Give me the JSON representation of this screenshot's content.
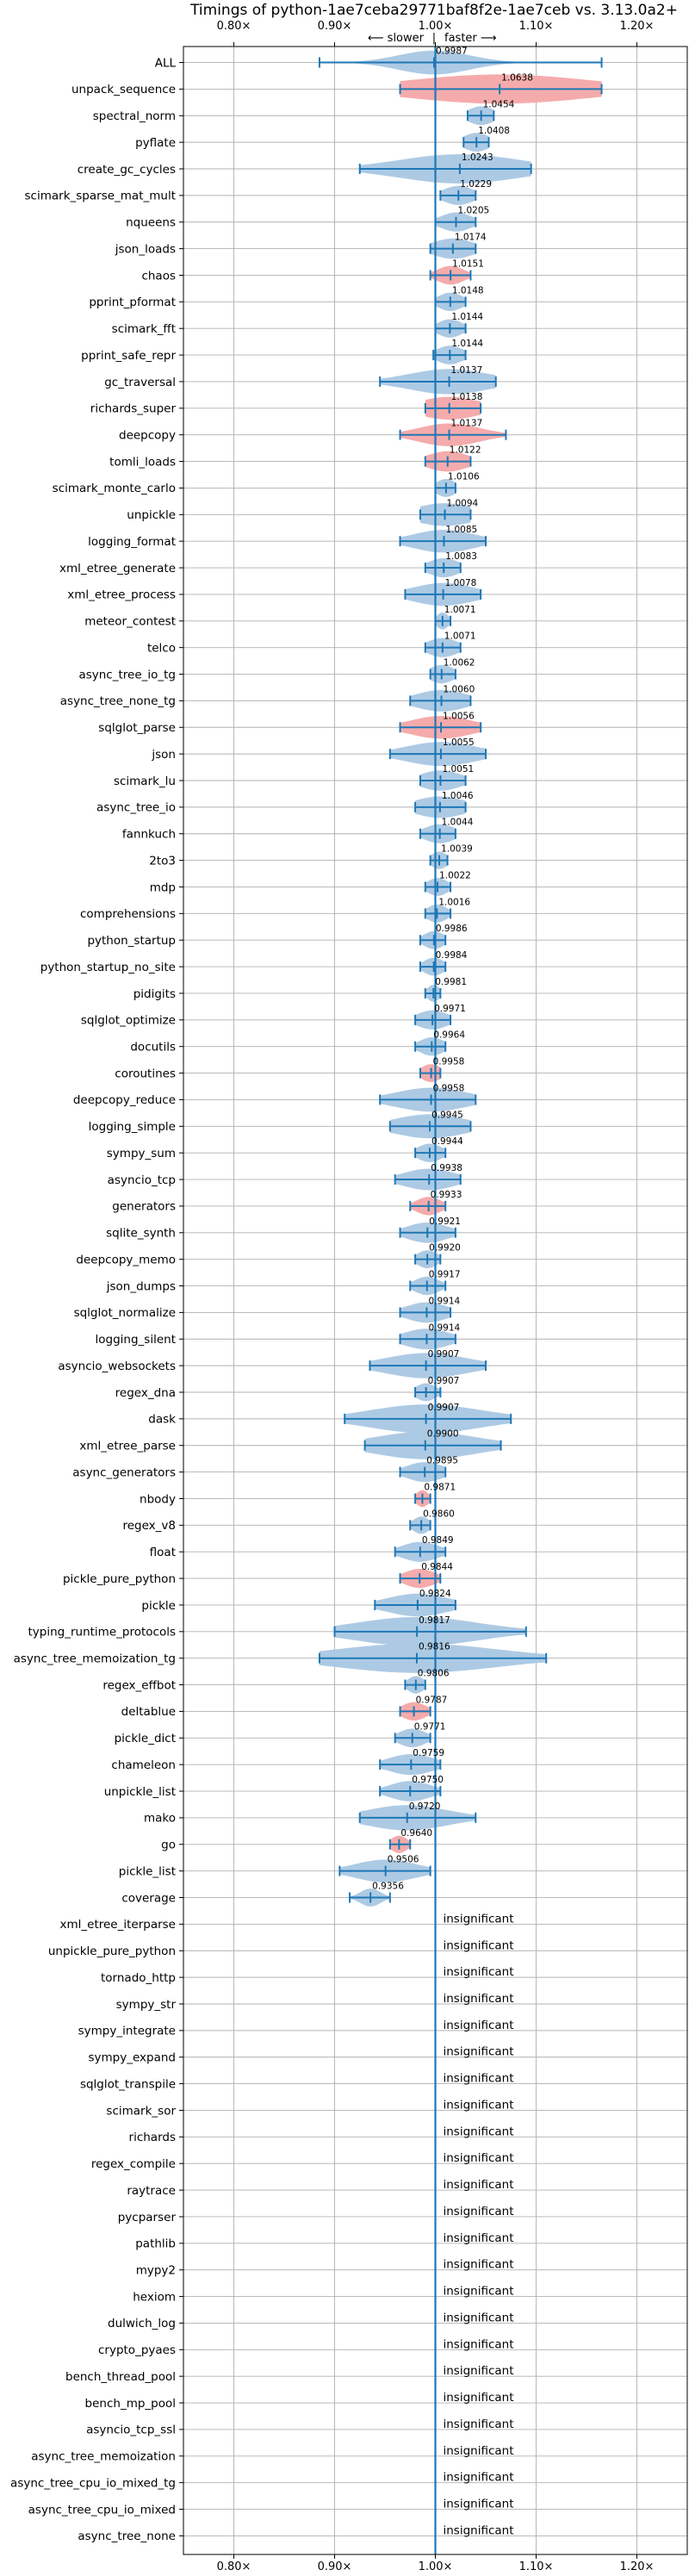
{
  "chart_data": {
    "type": "violin",
    "title": "Timings of python-1ae7ceba29771baf8f2e-1ae7ceb vs. 3.13.0a2+",
    "subtitle_left": "⟵ slower",
    "subtitle_right": "faster ⟶",
    "xlim": [
      0.75,
      1.25
    ],
    "x_ticks": [
      0.8,
      0.9,
      1.0,
      1.1,
      1.2
    ],
    "x_tick_labels": [
      "0.80×",
      "0.90×",
      "1.00×",
      "1.10×",
      "1.20×"
    ],
    "reference": 1.0,
    "colors": {
      "faster": "#a9c7e3",
      "slower": "#f4a7a7",
      "line": "#1f77b4"
    },
    "insignificant_label": "insignificant",
    "benchmarks": [
      {
        "name": "ALL",
        "value": 0.9987,
        "label": "0.9987",
        "lo": 0.885,
        "hi": 1.165,
        "spread": 0.035,
        "slower": false
      },
      {
        "name": "unpack_sequence",
        "value": 1.0638,
        "label": "1.0638",
        "lo": 0.965,
        "hi": 1.165,
        "spread": 0.09,
        "slower": true
      },
      {
        "name": "spectral_norm",
        "value": 1.0454,
        "label": "1.0454",
        "lo": 1.032,
        "hi": 1.058,
        "spread": 0.013,
        "slower": false
      },
      {
        "name": "pyflate",
        "value": 1.0408,
        "label": "1.0408",
        "lo": 1.028,
        "hi": 1.053,
        "spread": 0.013,
        "slower": false
      },
      {
        "name": "create_gc_cycles",
        "value": 1.0243,
        "label": "1.0243",
        "lo": 0.925,
        "hi": 1.095,
        "spread": 0.06,
        "slower": false
      },
      {
        "name": "scimark_sparse_mat_mult",
        "value": 1.0229,
        "label": "1.0229",
        "lo": 1.005,
        "hi": 1.04,
        "spread": 0.015,
        "slower": false
      },
      {
        "name": "nqueens",
        "value": 1.0205,
        "label": "1.0205",
        "lo": 1.0,
        "hi": 1.04,
        "spread": 0.015,
        "slower": false
      },
      {
        "name": "json_loads",
        "value": 1.0174,
        "label": "1.0174",
        "lo": 0.995,
        "hi": 1.04,
        "spread": 0.02,
        "slower": false
      },
      {
        "name": "chaos",
        "value": 1.0151,
        "label": "1.0151",
        "lo": 0.995,
        "hi": 1.035,
        "spread": 0.013,
        "slower": true
      },
      {
        "name": "pprint_pformat",
        "value": 1.0148,
        "label": "1.0148",
        "lo": 1.0,
        "hi": 1.03,
        "spread": 0.012,
        "slower": false
      },
      {
        "name": "scimark_fft",
        "value": 1.0144,
        "label": "1.0144",
        "lo": 1.0,
        "hi": 1.03,
        "spread": 0.012,
        "slower": false
      },
      {
        "name": "pprint_safe_repr",
        "value": 1.0144,
        "label": "1.0144",
        "lo": 0.998,
        "hi": 1.03,
        "spread": 0.013,
        "slower": false
      },
      {
        "name": "gc_traversal",
        "value": 1.0137,
        "label": "1.0137",
        "lo": 0.945,
        "hi": 1.06,
        "spread": 0.04,
        "slower": false
      },
      {
        "name": "richards_super",
        "value": 1.0138,
        "label": "1.0138",
        "lo": 0.99,
        "hi": 1.045,
        "spread": 0.03,
        "slower": true
      },
      {
        "name": "deepcopy",
        "value": 1.0137,
        "label": "1.0137",
        "lo": 0.965,
        "hi": 1.07,
        "spread": 0.03,
        "slower": true
      },
      {
        "name": "tomli_loads",
        "value": 1.0122,
        "label": "1.0122",
        "lo": 0.99,
        "hi": 1.035,
        "spread": 0.02,
        "slower": true
      },
      {
        "name": "scimark_monte_carlo",
        "value": 1.0106,
        "label": "1.0106",
        "lo": 1.0,
        "hi": 1.02,
        "spread": 0.01,
        "slower": false
      },
      {
        "name": "unpickle",
        "value": 1.0094,
        "label": "1.0094",
        "lo": 0.985,
        "hi": 1.035,
        "spread": 0.03,
        "slower": false
      },
      {
        "name": "logging_format",
        "value": 1.0085,
        "label": "1.0085",
        "lo": 0.965,
        "hi": 1.05,
        "spread": 0.03,
        "slower": false
      },
      {
        "name": "xml_etree_generate",
        "value": 1.0083,
        "label": "1.0083",
        "lo": 0.99,
        "hi": 1.025,
        "spread": 0.015,
        "slower": false
      },
      {
        "name": "xml_etree_process",
        "value": 1.0078,
        "label": "1.0078",
        "lo": 0.97,
        "hi": 1.045,
        "spread": 0.03,
        "slower": false
      },
      {
        "name": "meteor_contest",
        "value": 1.0071,
        "label": "1.0071",
        "lo": 1.0,
        "hi": 1.015,
        "spread": 0.006,
        "slower": false
      },
      {
        "name": "telco",
        "value": 1.0071,
        "label": "1.0071",
        "lo": 0.99,
        "hi": 1.025,
        "spread": 0.015,
        "slower": false
      },
      {
        "name": "async_tree_io_tg",
        "value": 1.0062,
        "label": "1.0062",
        "lo": 0.995,
        "hi": 1.02,
        "spread": 0.012,
        "slower": false
      },
      {
        "name": "async_tree_none_tg",
        "value": 1.006,
        "label": "1.0060",
        "lo": 0.975,
        "hi": 1.035,
        "spread": 0.025,
        "slower": false
      },
      {
        "name": "sqlglot_parse",
        "value": 1.0056,
        "label": "1.0056",
        "lo": 0.965,
        "hi": 1.045,
        "spread": 0.03,
        "slower": true
      },
      {
        "name": "json",
        "value": 1.0055,
        "label": "1.0055",
        "lo": 0.955,
        "hi": 1.05,
        "spread": 0.035,
        "slower": false
      },
      {
        "name": "scimark_lu",
        "value": 1.0051,
        "label": "1.0051",
        "lo": 0.985,
        "hi": 1.03,
        "spread": 0.02,
        "slower": false
      },
      {
        "name": "async_tree_io",
        "value": 1.0046,
        "label": "1.0046",
        "lo": 0.98,
        "hi": 1.03,
        "spread": 0.025,
        "slower": false
      },
      {
        "name": "fannkuch",
        "value": 1.0044,
        "label": "1.0044",
        "lo": 0.985,
        "hi": 1.02,
        "spread": 0.015,
        "slower": false
      },
      {
        "name": "2to3",
        "value": 1.0039,
        "label": "1.0039",
        "lo": 0.995,
        "hi": 1.012,
        "spread": 0.008,
        "slower": false
      },
      {
        "name": "mdp",
        "value": 1.0022,
        "label": "1.0022",
        "lo": 0.99,
        "hi": 1.015,
        "spread": 0.01,
        "slower": false
      },
      {
        "name": "comprehensions",
        "value": 1.0016,
        "label": "1.0016",
        "lo": 0.99,
        "hi": 1.015,
        "spread": 0.01,
        "slower": false
      },
      {
        "name": "python_startup",
        "value": 0.9986,
        "label": "0.9986",
        "lo": 0.985,
        "hi": 1.01,
        "spread": 0.01,
        "slower": false
      },
      {
        "name": "python_startup_no_site",
        "value": 0.9984,
        "label": "0.9984",
        "lo": 0.985,
        "hi": 1.01,
        "spread": 0.01,
        "slower": false
      },
      {
        "name": "pidigits",
        "value": 0.9981,
        "label": "0.9981",
        "lo": 0.99,
        "hi": 1.005,
        "spread": 0.006,
        "slower": false
      },
      {
        "name": "sqlglot_optimize",
        "value": 0.9971,
        "label": "0.9971",
        "lo": 0.98,
        "hi": 1.015,
        "spread": 0.015,
        "slower": false
      },
      {
        "name": "docutils",
        "value": 0.9964,
        "label": "0.9964",
        "lo": 0.98,
        "hi": 1.01,
        "spread": 0.012,
        "slower": false
      },
      {
        "name": "coroutines",
        "value": 0.9958,
        "label": "0.9958",
        "lo": 0.985,
        "hi": 1.005,
        "spread": 0.01,
        "slower": true
      },
      {
        "name": "deepcopy_reduce",
        "value": 0.9958,
        "label": "0.9958",
        "lo": 0.945,
        "hi": 1.04,
        "spread": 0.035,
        "slower": false
      },
      {
        "name": "logging_simple",
        "value": 0.9945,
        "label": "0.9945",
        "lo": 0.955,
        "hi": 1.035,
        "spread": 0.035,
        "slower": false
      },
      {
        "name": "sympy_sum",
        "value": 0.9944,
        "label": "0.9944",
        "lo": 0.98,
        "hi": 1.01,
        "spread": 0.012,
        "slower": false
      },
      {
        "name": "asyncio_tcp",
        "value": 0.9938,
        "label": "0.9938",
        "lo": 0.96,
        "hi": 1.025,
        "spread": 0.025,
        "slower": false
      },
      {
        "name": "generators",
        "value": 0.9933,
        "label": "0.9933",
        "lo": 0.975,
        "hi": 1.01,
        "spread": 0.012,
        "slower": true
      },
      {
        "name": "sqlite_synth",
        "value": 0.9921,
        "label": "0.9921",
        "lo": 0.965,
        "hi": 1.02,
        "spread": 0.02,
        "slower": false
      },
      {
        "name": "deepcopy_memo",
        "value": 0.992,
        "label": "0.9920",
        "lo": 0.98,
        "hi": 1.005,
        "spread": 0.01,
        "slower": false
      },
      {
        "name": "json_dumps",
        "value": 0.9917,
        "label": "0.9917",
        "lo": 0.975,
        "hi": 1.01,
        "spread": 0.012,
        "slower": false
      },
      {
        "name": "sqlglot_normalize",
        "value": 0.9914,
        "label": "0.9914",
        "lo": 0.965,
        "hi": 1.015,
        "spread": 0.02,
        "slower": false
      },
      {
        "name": "logging_silent",
        "value": 0.9914,
        "label": "0.9914",
        "lo": 0.965,
        "hi": 1.02,
        "spread": 0.022,
        "slower": false
      },
      {
        "name": "asyncio_websockets",
        "value": 0.9907,
        "label": "0.9907",
        "lo": 0.935,
        "hi": 1.05,
        "spread": 0.04,
        "slower": false
      },
      {
        "name": "regex_dna",
        "value": 0.9907,
        "label": "0.9907",
        "lo": 0.98,
        "hi": 1.005,
        "spread": 0.01,
        "slower": false
      },
      {
        "name": "dask",
        "value": 0.9907,
        "label": "0.9907",
        "lo": 0.91,
        "hi": 1.075,
        "spread": 0.055,
        "slower": false
      },
      {
        "name": "xml_etree_parse",
        "value": 0.99,
        "label": "0.9900",
        "lo": 0.93,
        "hi": 1.065,
        "spread": 0.05,
        "slower": false
      },
      {
        "name": "async_generators",
        "value": 0.9895,
        "label": "0.9895",
        "lo": 0.965,
        "hi": 1.01,
        "spread": 0.018,
        "slower": false
      },
      {
        "name": "nbody",
        "value": 0.9871,
        "label": "0.9871",
        "lo": 0.98,
        "hi": 0.995,
        "spread": 0.006,
        "slower": true
      },
      {
        "name": "regex_v8",
        "value": 0.986,
        "label": "0.9860",
        "lo": 0.975,
        "hi": 0.995,
        "spread": 0.008,
        "slower": false
      },
      {
        "name": "float",
        "value": 0.9849,
        "label": "0.9849",
        "lo": 0.96,
        "hi": 1.01,
        "spread": 0.018,
        "slower": false
      },
      {
        "name": "pickle_pure_python",
        "value": 0.9844,
        "label": "0.9844",
        "lo": 0.965,
        "hi": 1.005,
        "spread": 0.015,
        "slower": true
      },
      {
        "name": "pickle",
        "value": 0.9824,
        "label": "0.9824",
        "lo": 0.94,
        "hi": 1.02,
        "spread": 0.03,
        "slower": false
      },
      {
        "name": "typing_runtime_protocols",
        "value": 0.9817,
        "label": "0.9817",
        "lo": 0.9,
        "hi": 1.09,
        "spread": 0.06,
        "slower": false
      },
      {
        "name": "async_tree_memoization_tg",
        "value": 0.9816,
        "label": "0.9816",
        "lo": 0.885,
        "hi": 1.11,
        "spread": 0.08,
        "slower": false
      },
      {
        "name": "regex_effbot",
        "value": 0.9806,
        "label": "0.9806",
        "lo": 0.97,
        "hi": 0.99,
        "spread": 0.008,
        "slower": false
      },
      {
        "name": "deltablue",
        "value": 0.9787,
        "label": "0.9787",
        "lo": 0.965,
        "hi": 0.995,
        "spread": 0.012,
        "slower": true
      },
      {
        "name": "pickle_dict",
        "value": 0.9771,
        "label": "0.9771",
        "lo": 0.96,
        "hi": 0.995,
        "spread": 0.013,
        "slower": false
      },
      {
        "name": "chameleon",
        "value": 0.9759,
        "label": "0.9759",
        "lo": 0.945,
        "hi": 1.005,
        "spread": 0.022,
        "slower": false
      },
      {
        "name": "unpickle_list",
        "value": 0.975,
        "label": "0.9750",
        "lo": 0.945,
        "hi": 1.005,
        "spread": 0.02,
        "slower": false
      },
      {
        "name": "mako",
        "value": 0.972,
        "label": "0.9720",
        "lo": 0.925,
        "hi": 1.04,
        "spread": 0.04,
        "slower": false
      },
      {
        "name": "go",
        "value": 0.964,
        "label": "0.9640",
        "lo": 0.955,
        "hi": 0.975,
        "spread": 0.008,
        "slower": true
      },
      {
        "name": "pickle_list",
        "value": 0.9506,
        "label": "0.9506",
        "lo": 0.905,
        "hi": 0.995,
        "spread": 0.03,
        "slower": false
      },
      {
        "name": "coverage",
        "value": 0.9356,
        "label": "0.9356",
        "lo": 0.915,
        "hi": 0.955,
        "spread": 0.01,
        "slower": false
      },
      {
        "name": "xml_etree_iterparse",
        "insignificant": true
      },
      {
        "name": "unpickle_pure_python",
        "insignificant": true
      },
      {
        "name": "tornado_http",
        "insignificant": true
      },
      {
        "name": "sympy_str",
        "insignificant": true
      },
      {
        "name": "sympy_integrate",
        "insignificant": true
      },
      {
        "name": "sympy_expand",
        "insignificant": true
      },
      {
        "name": "sqlglot_transpile",
        "insignificant": true
      },
      {
        "name": "scimark_sor",
        "insignificant": true
      },
      {
        "name": "richards",
        "insignificant": true
      },
      {
        "name": "regex_compile",
        "insignificant": true
      },
      {
        "name": "raytrace",
        "insignificant": true
      },
      {
        "name": "pycparser",
        "insignificant": true
      },
      {
        "name": "pathlib",
        "insignificant": true
      },
      {
        "name": "mypy2",
        "insignificant": true
      },
      {
        "name": "hexiom",
        "insignificant": true
      },
      {
        "name": "dulwich_log",
        "insignificant": true
      },
      {
        "name": "crypto_pyaes",
        "insignificant": true
      },
      {
        "name": "bench_thread_pool",
        "insignificant": true
      },
      {
        "name": "bench_mp_pool",
        "insignificant": true
      },
      {
        "name": "asyncio_tcp_ssl",
        "insignificant": true
      },
      {
        "name": "async_tree_memoization",
        "insignificant": true
      },
      {
        "name": "async_tree_cpu_io_mixed_tg",
        "insignificant": true
      },
      {
        "name": "async_tree_cpu_io_mixed",
        "insignificant": true
      },
      {
        "name": "async_tree_none",
        "insignificant": true
      }
    ]
  }
}
